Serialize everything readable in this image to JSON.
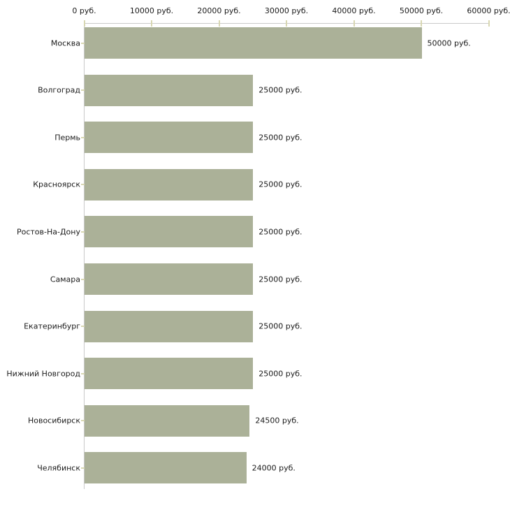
{
  "chart_data": {
    "type": "bar",
    "orientation": "horizontal",
    "title": "",
    "xlabel": "",
    "ylabel": "",
    "legend_position": "none",
    "grid": "off",
    "categories": [
      "Москва",
      "Волгоград",
      "Пермь",
      "Красноярск",
      "Ростов-На-Дону",
      "Самара",
      "Екатеринбург",
      "Нижний Новгород",
      "Новосибирск",
      "Челябинск"
    ],
    "values": [
      50000,
      25000,
      25000,
      25000,
      25000,
      25000,
      25000,
      25000,
      24500,
      24000
    ],
    "value_labels": [
      "50000 руб.",
      "25000 руб.",
      "25000 руб.",
      "25000 руб.",
      "25000 руб.",
      "25000 руб.",
      "25000 руб.",
      "25000 руб.",
      "24500 руб.",
      "24000 руб."
    ],
    "x_axis": {
      "position": "top",
      "min": 0,
      "max": 60000,
      "ticks": [
        0,
        10000,
        20000,
        30000,
        40000,
        50000,
        60000
      ],
      "tick_labels": [
        "0 руб.",
        "10000 руб.",
        "20000 руб.",
        "30000 руб.",
        "40000 руб.",
        "50000 руб.",
        "60000 руб."
      ]
    },
    "colors": {
      "bar": "#ABB198",
      "axis_line": "#C9C9C9",
      "tick_mark": "#D8D7B2",
      "text": "#1a1a1a",
      "background": "#FFFFFF"
    }
  }
}
